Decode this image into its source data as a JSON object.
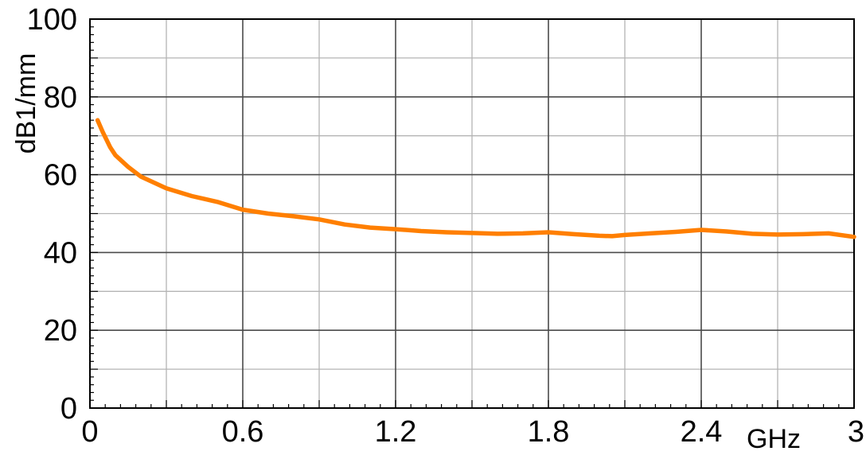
{
  "chart_data": {
    "type": "line",
    "xlabel": "GHz",
    "ylabel": "dB1/mm",
    "xlim": [
      0,
      3
    ],
    "ylim": [
      0,
      100
    ],
    "x_ticks": [
      "0",
      "0.6",
      "1.2",
      "1.8",
      "2.4",
      "3"
    ],
    "y_ticks": [
      "0",
      "20",
      "40",
      "60",
      "80",
      "100"
    ],
    "grid": true,
    "line_color": "#ff7f00",
    "series": [
      {
        "x": [
          0.03,
          0.05,
          0.08,
          0.1,
          0.15,
          0.2,
          0.3,
          0.4,
          0.5,
          0.6,
          0.7,
          0.8,
          0.9,
          1.0,
          1.1,
          1.2,
          1.3,
          1.4,
          1.5,
          1.6,
          1.7,
          1.8,
          1.9,
          2.0,
          2.05,
          2.1,
          2.2,
          2.3,
          2.4,
          2.5,
          2.6,
          2.7,
          2.8,
          2.9,
          3.0
        ],
        "y": [
          74,
          71,
          67,
          65,
          62,
          59.5,
          56.5,
          54.5,
          53,
          51,
          50,
          49.3,
          48.5,
          47.2,
          46.4,
          46.0,
          45.5,
          45.2,
          45.0,
          44.8,
          44.9,
          45.2,
          44.7,
          44.3,
          44.2,
          44.5,
          44.9,
          45.3,
          45.8,
          45.4,
          44.8,
          44.6,
          44.7,
          44.9,
          44.0
        ]
      }
    ]
  }
}
